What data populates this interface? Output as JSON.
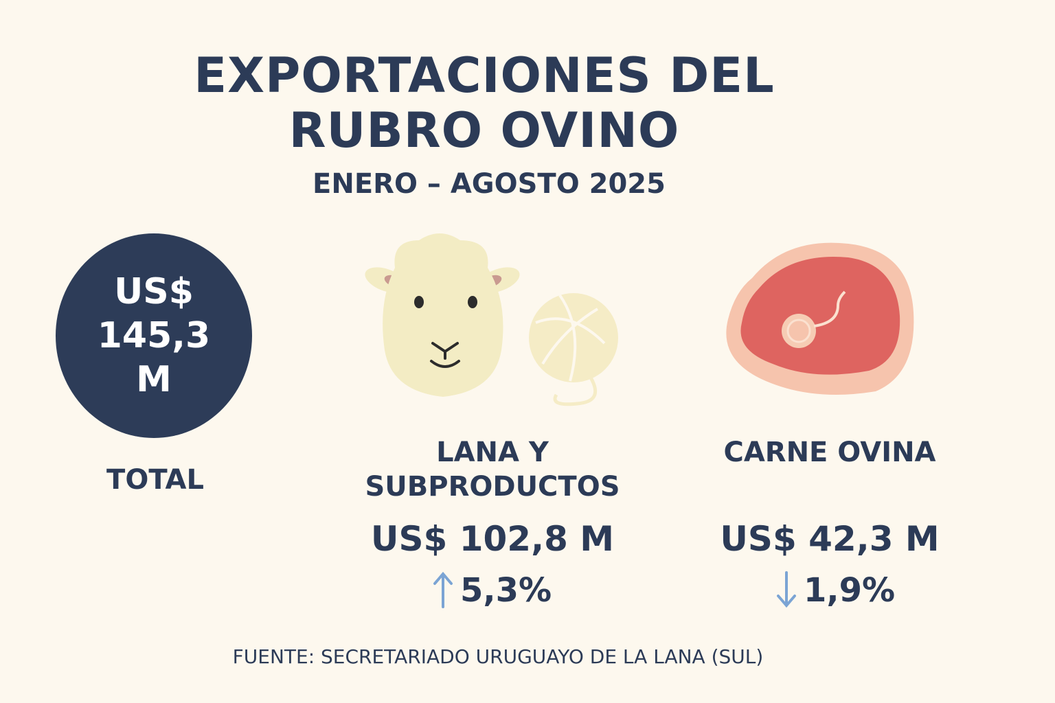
{
  "header": {
    "title": "EXPORTACIONES DEL RUBRO OVINO",
    "subtitle": "ENERO – AGOSTO 2025"
  },
  "total": {
    "value": "US$ 145,3 M",
    "label": "TOTAL"
  },
  "items": [
    {
      "label": "LANA Y SUBPRODUCTOS",
      "value": "US$ 102,8 M",
      "change": "5,3%"
    },
    {
      "label": "CARNE OVINA",
      "value": "US$ 42,3 M",
      "change": "1,9%"
    }
  ],
  "source": "FUENTE: SECRETARIADO URUGUAYO DE LA LANA (SUL)"
}
